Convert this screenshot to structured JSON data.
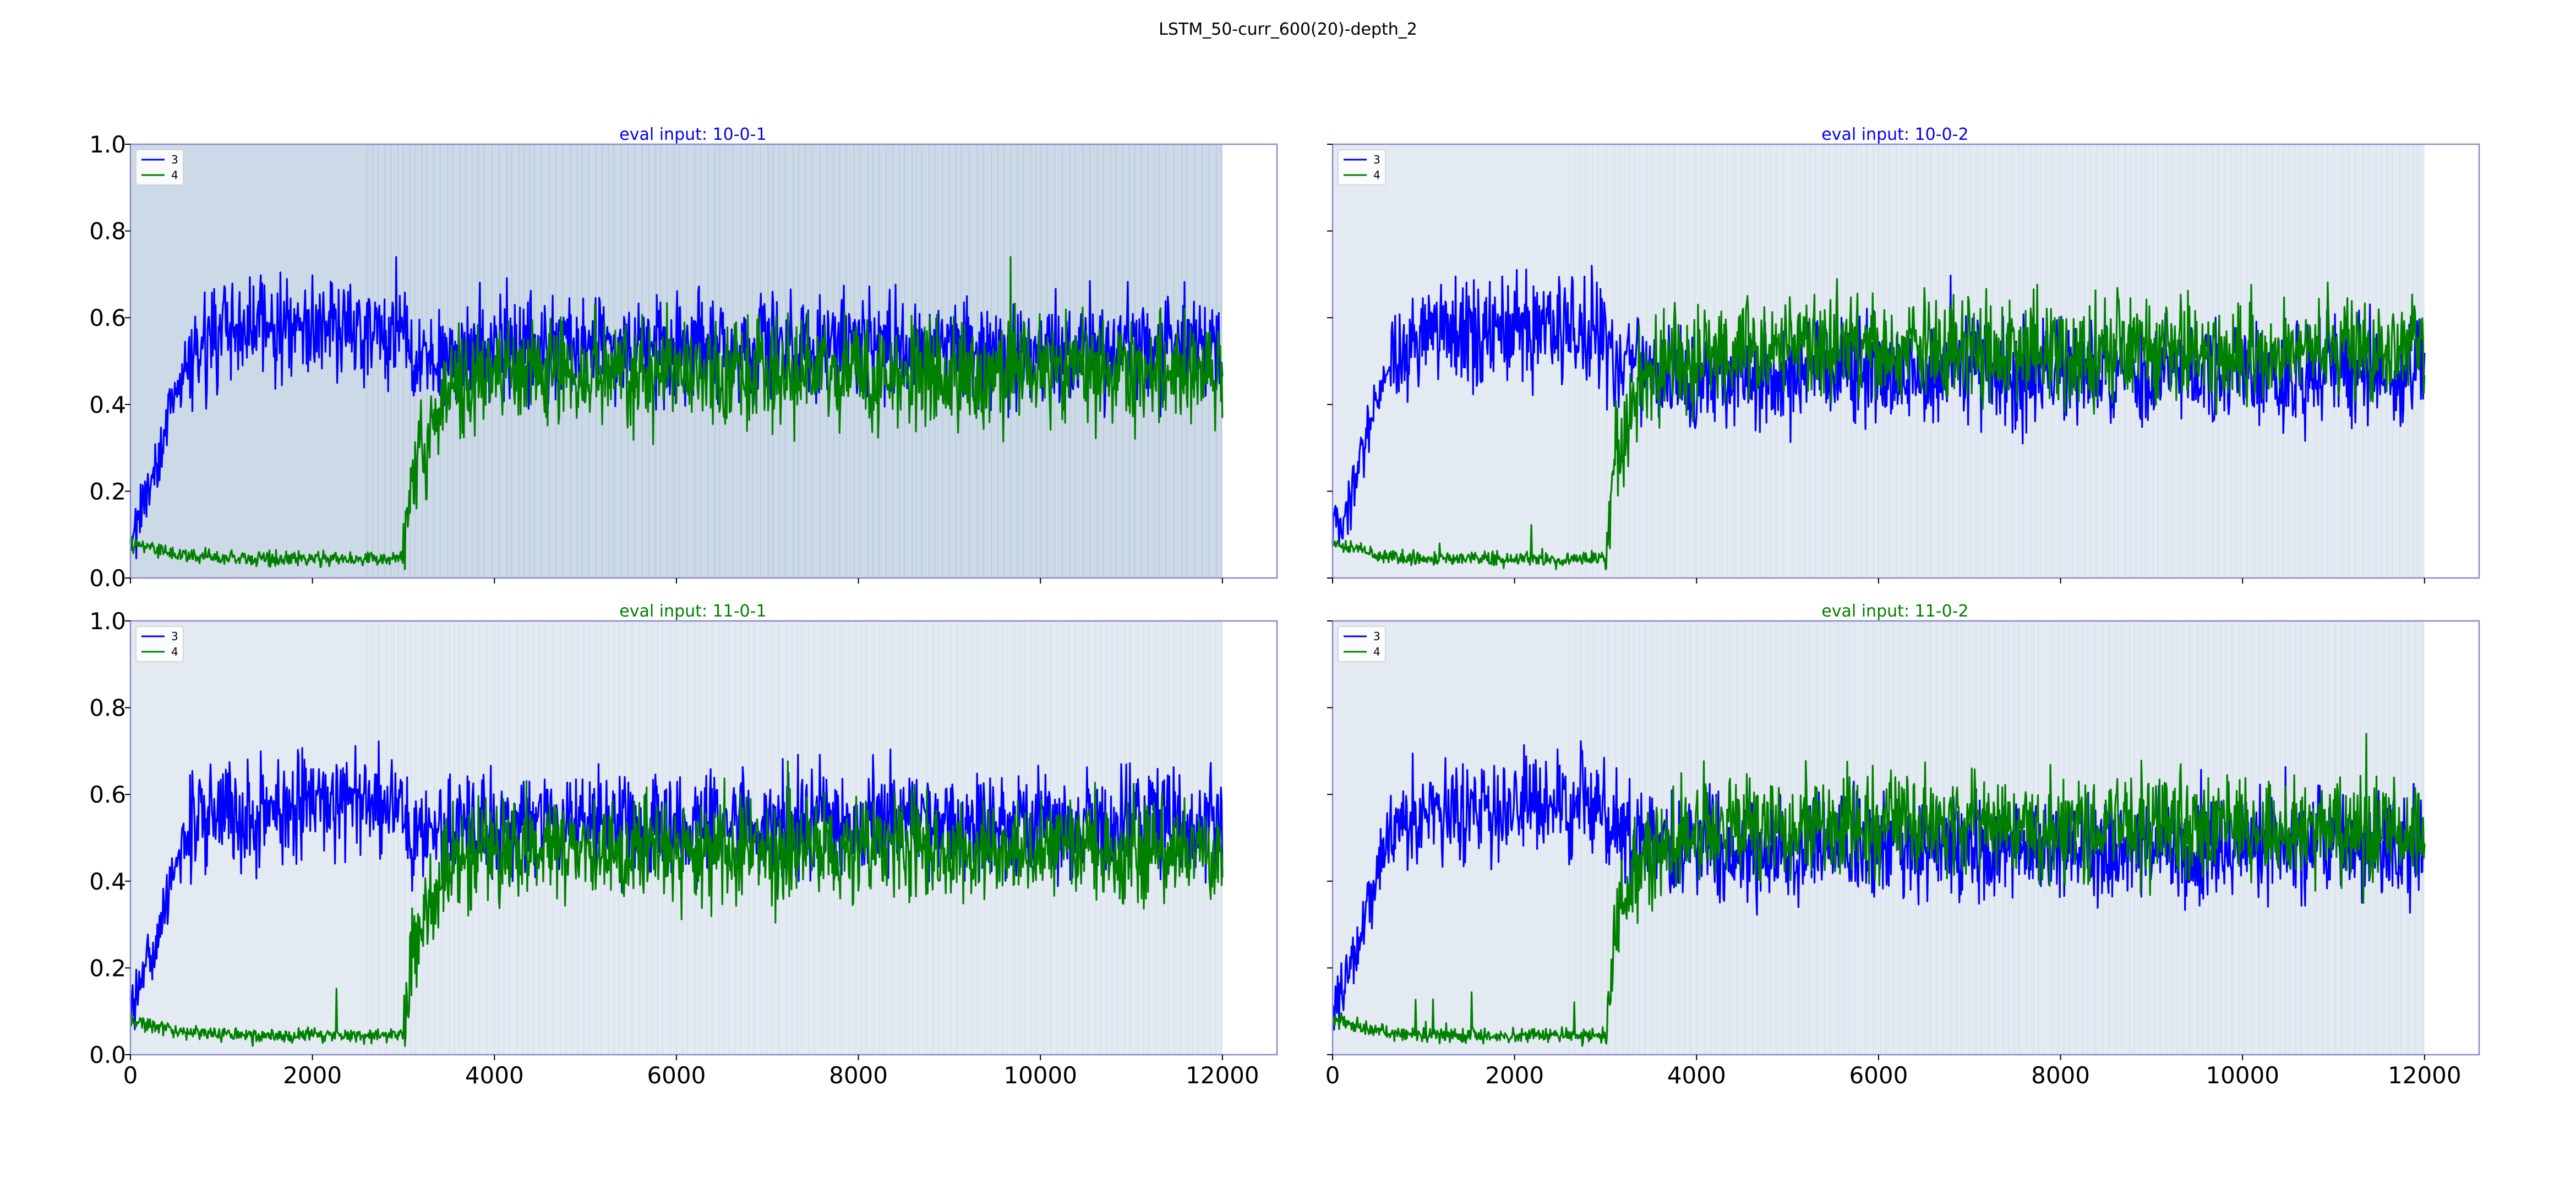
{
  "figure": {
    "title": "LSTM_50-curr_600(20)-depth_2"
  },
  "colors": {
    "series3": "#0000ff",
    "series4": "#008000",
    "shade": "#e3eaf2",
    "shade_dense": "#ccd9e6",
    "frame": "#8a8aca"
  },
  "chart_data": [
    {
      "type": "line",
      "title": "eval input: 10-0-1",
      "title_color": "#0000ff",
      "dense_shading": true,
      "xlim": [
        0,
        12600
      ],
      "ylim": [
        0.0,
        1.0
      ],
      "xticks": [
        "0",
        "2000",
        "4000",
        "6000",
        "8000",
        "10000",
        "12000"
      ],
      "yticks": [
        "0.0",
        "0.2",
        "0.4",
        "0.6",
        "0.8",
        "1.0"
      ],
      "legend": {
        "placement": "upper-left",
        "entries": [
          "3",
          "4"
        ]
      },
      "series": [
        {
          "name": "3",
          "color": "#0000ff",
          "x": [
            0,
            200,
            400,
            600,
            800,
            1000,
            1500,
            2000,
            2500,
            3000,
            3100,
            3500,
            4000,
            5000,
            6000,
            7000,
            8000,
            9000,
            10000,
            11000,
            12000
          ],
          "y": [
            0.1,
            0.2,
            0.35,
            0.5,
            0.55,
            0.56,
            0.56,
            0.57,
            0.57,
            0.56,
            0.5,
            0.52,
            0.53,
            0.53,
            0.53,
            0.53,
            0.53,
            0.53,
            0.52,
            0.53,
            0.53
          ]
        },
        {
          "name": "4",
          "color": "#008000",
          "x": [
            0,
            200,
            400,
            600,
            800,
            1000,
            1500,
            2000,
            2500,
            3000,
            3100,
            3500,
            4000,
            5000,
            6000,
            7000,
            8000,
            9000,
            10000,
            11000,
            12000
          ],
          "y": [
            0.08,
            0.07,
            0.06,
            0.05,
            0.05,
            0.045,
            0.045,
            0.045,
            0.045,
            0.045,
            0.25,
            0.44,
            0.47,
            0.47,
            0.47,
            0.47,
            0.47,
            0.47,
            0.48,
            0.47,
            0.47
          ]
        }
      ]
    },
    {
      "type": "line",
      "title": "eval input: 10-0-2",
      "title_color": "#0000ff",
      "dense_shading": false,
      "xlim": [
        0,
        12600
      ],
      "ylim": [
        0.0,
        1.0
      ],
      "xticks": [
        "0",
        "2000",
        "4000",
        "6000",
        "8000",
        "10000",
        "12000"
      ],
      "yticks": [
        "0.0",
        "0.2",
        "0.4",
        "0.6",
        "0.8",
        "1.0"
      ],
      "legend": {
        "placement": "upper-left",
        "entries": [
          "3",
          "4"
        ]
      },
      "series": [
        {
          "name": "3",
          "color": "#0000ff",
          "x": [
            0,
            200,
            400,
            600,
            800,
            1000,
            1500,
            2000,
            2500,
            3000,
            3100,
            3500,
            4000,
            5000,
            6000,
            7000,
            8000,
            9000,
            10000,
            11000,
            12000
          ],
          "y": [
            0.1,
            0.2,
            0.35,
            0.5,
            0.55,
            0.56,
            0.57,
            0.57,
            0.58,
            0.57,
            0.5,
            0.48,
            0.47,
            0.47,
            0.48,
            0.47,
            0.48,
            0.47,
            0.48,
            0.48,
            0.48
          ]
        },
        {
          "name": "4",
          "color": "#008000",
          "x": [
            0,
            200,
            400,
            600,
            800,
            1000,
            1500,
            2000,
            2500,
            3000,
            3100,
            3500,
            4000,
            5000,
            6000,
            7000,
            8000,
            9000,
            10000,
            11000,
            12000
          ],
          "y": [
            0.08,
            0.07,
            0.06,
            0.05,
            0.045,
            0.045,
            0.045,
            0.045,
            0.045,
            0.045,
            0.3,
            0.48,
            0.52,
            0.53,
            0.52,
            0.53,
            0.52,
            0.53,
            0.52,
            0.52,
            0.52
          ]
        }
      ]
    },
    {
      "type": "line",
      "title": "eval input: 11-0-1",
      "title_color": "#008000",
      "dense_shading": false,
      "xlim": [
        0,
        12600
      ],
      "ylim": [
        0.0,
        1.0
      ],
      "xticks": [
        "0",
        "2000",
        "4000",
        "6000",
        "8000",
        "10000",
        "12000"
      ],
      "yticks": [
        "0.0",
        "0.2",
        "0.4",
        "0.6",
        "0.8",
        "1.0"
      ],
      "legend": {
        "placement": "upper-left",
        "entries": [
          "3",
          "4"
        ]
      },
      "series": [
        {
          "name": "3",
          "color": "#0000ff",
          "x": [
            0,
            200,
            400,
            600,
            800,
            1000,
            1500,
            2000,
            2500,
            3000,
            3100,
            3500,
            4000,
            5000,
            6000,
            7000,
            8000,
            9000,
            10000,
            11000,
            12000
          ],
          "y": [
            0.1,
            0.2,
            0.35,
            0.5,
            0.55,
            0.56,
            0.56,
            0.57,
            0.57,
            0.56,
            0.5,
            0.52,
            0.53,
            0.53,
            0.53,
            0.53,
            0.53,
            0.53,
            0.52,
            0.53,
            0.53
          ]
        },
        {
          "name": "4",
          "color": "#008000",
          "x": [
            0,
            200,
            400,
            600,
            800,
            1000,
            1500,
            2000,
            2500,
            3000,
            3100,
            3500,
            4000,
            5000,
            6000,
            7000,
            8000,
            9000,
            10000,
            11000,
            12000
          ],
          "y": [
            0.08,
            0.07,
            0.06,
            0.05,
            0.05,
            0.045,
            0.045,
            0.045,
            0.045,
            0.045,
            0.25,
            0.44,
            0.47,
            0.47,
            0.47,
            0.47,
            0.47,
            0.47,
            0.48,
            0.47,
            0.47
          ]
        }
      ]
    },
    {
      "type": "line",
      "title": "eval input: 11-0-2",
      "title_color": "#008000",
      "dense_shading": false,
      "xlim": [
        0,
        12600
      ],
      "ylim": [
        0.0,
        1.0
      ],
      "xticks": [
        "0",
        "2000",
        "4000",
        "6000",
        "8000",
        "10000",
        "12000"
      ],
      "yticks": [
        "0.0",
        "0.2",
        "0.4",
        "0.6",
        "0.8",
        "1.0"
      ],
      "legend": {
        "placement": "upper-left",
        "entries": [
          "3",
          "4"
        ]
      },
      "series": [
        {
          "name": "3",
          "color": "#0000ff",
          "x": [
            0,
            200,
            400,
            600,
            800,
            1000,
            1500,
            2000,
            2500,
            3000,
            3100,
            3500,
            4000,
            5000,
            6000,
            7000,
            8000,
            9000,
            10000,
            11000,
            12000
          ],
          "y": [
            0.1,
            0.2,
            0.35,
            0.5,
            0.55,
            0.56,
            0.57,
            0.57,
            0.58,
            0.57,
            0.5,
            0.48,
            0.47,
            0.47,
            0.48,
            0.47,
            0.48,
            0.47,
            0.48,
            0.48,
            0.48
          ]
        },
        {
          "name": "4",
          "color": "#008000",
          "x": [
            0,
            200,
            400,
            600,
            800,
            1000,
            1500,
            2000,
            2500,
            3000,
            3100,
            3500,
            4000,
            5000,
            6000,
            7000,
            8000,
            9000,
            10000,
            11000,
            12000
          ],
          "y": [
            0.08,
            0.07,
            0.06,
            0.05,
            0.045,
            0.045,
            0.045,
            0.045,
            0.045,
            0.045,
            0.3,
            0.48,
            0.52,
            0.53,
            0.52,
            0.53,
            0.52,
            0.53,
            0.52,
            0.52,
            0.52
          ]
        }
      ]
    }
  ]
}
